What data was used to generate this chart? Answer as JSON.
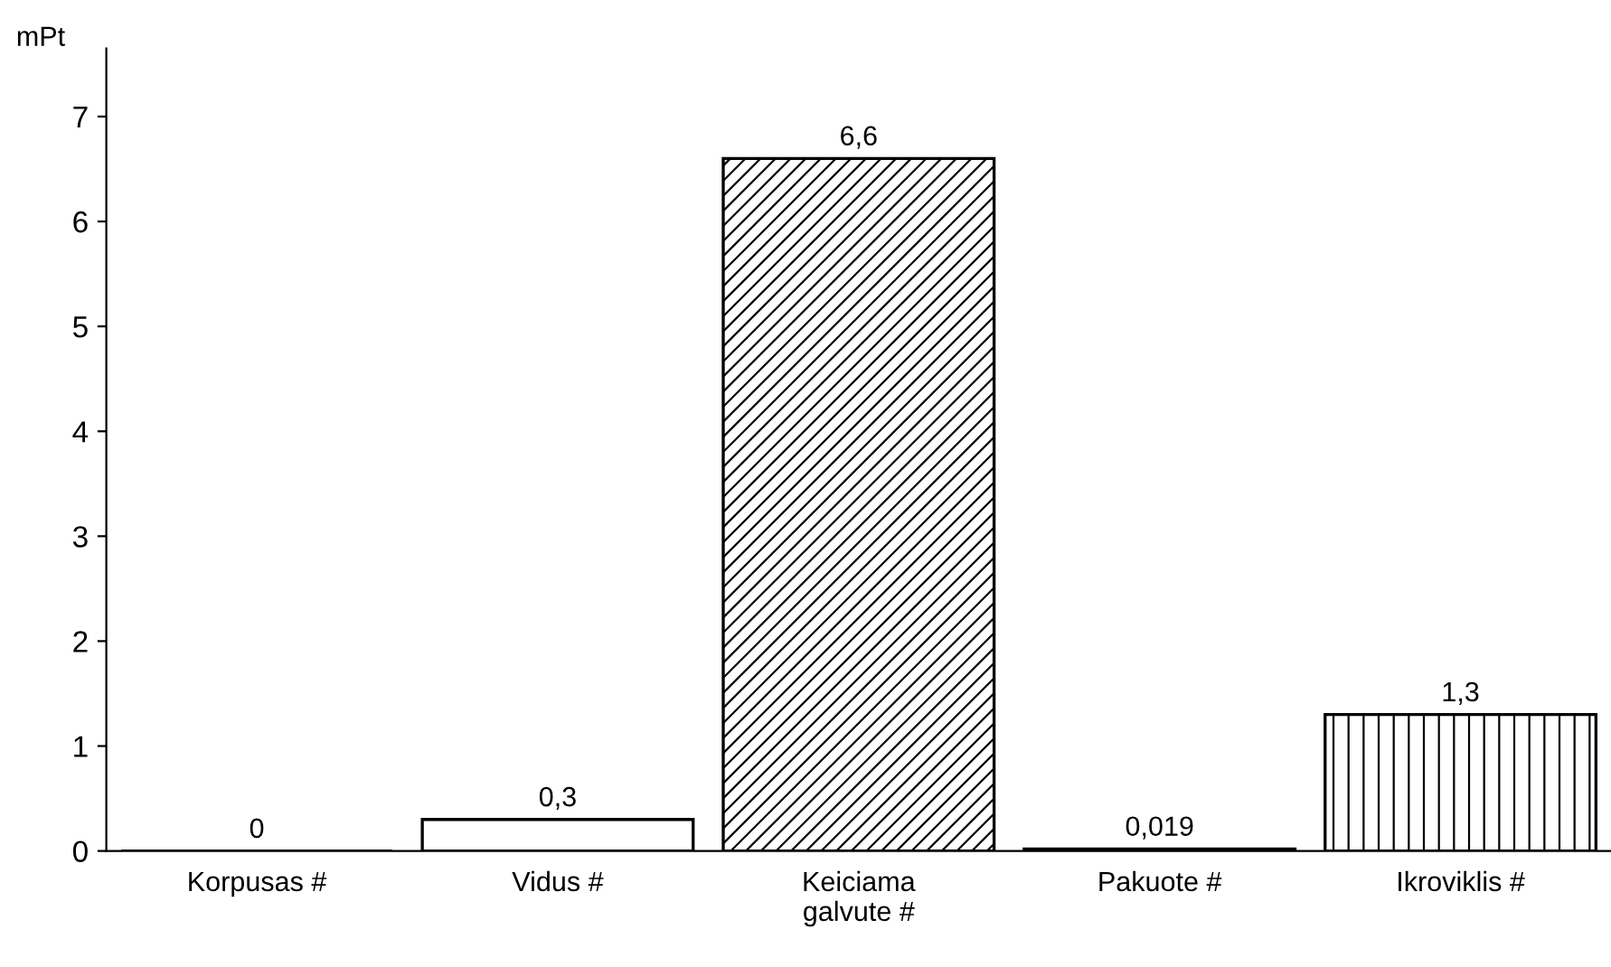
{
  "chart_data": {
    "type": "bar",
    "ylabel": "mPt",
    "categories": [
      "Korpusas #",
      "Vidus #",
      "Keiciama\ngalvute #",
      "Pakuote #",
      "Ikroviklis #"
    ],
    "values": [
      0,
      0.3,
      6.6,
      0.019,
      1.3
    ],
    "value_labels": [
      "0",
      "0,3",
      "6,6",
      "0,019",
      "1,3"
    ],
    "color": "#000000",
    "ylim": [
      0,
      7.65
    ],
    "yticks": [
      0,
      1,
      2,
      3,
      4,
      5,
      6,
      7
    ],
    "grid": false
  }
}
